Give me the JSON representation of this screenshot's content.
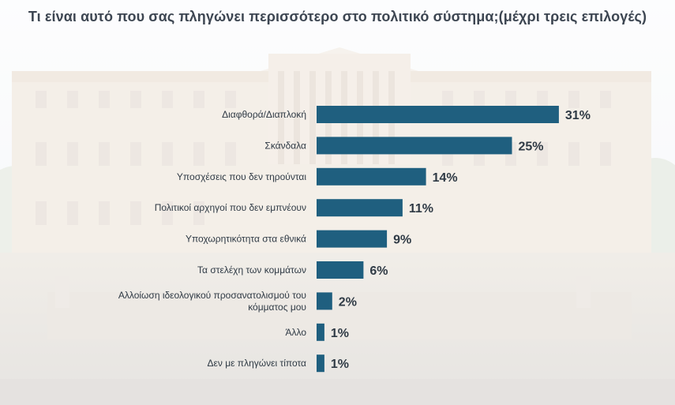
{
  "title": "Τι είναι αυτό που σας πληγώνει περισσότερο στο πολιτικό σύστημα;(μέχρι τρεις επιλογές)",
  "colors": {
    "bar": "#1f5f7f",
    "text": "#2f3a45"
  },
  "chart_data": {
    "type": "bar",
    "orientation": "horizontal",
    "title": "Τι είναι αυτό που σας πληγώνει περισσότερο στο πολιτικό σύστημα;(μέχρι τρεις επιλογές)",
    "categories": [
      "Διαφθορά/Διαπλοκή",
      "Σκάνδαλα",
      "Υποσχέσεις που δεν τηρούνται",
      "Πολιτικοί αρχηγοί που δεν εμπνέουν",
      "Υποχωρητικότητα στα εθνικά",
      "Τα στελέχη των κομμάτων",
      "Αλλοίωση ιδεολογικού προσανατολισμού του κόμματος μου",
      "Άλλο",
      "Δεν με πληγώνει τίποτα"
    ],
    "values": [
      31,
      25,
      14,
      11,
      9,
      6,
      2,
      1,
      1
    ],
    "value_labels": [
      "31%",
      "25%",
      "14%",
      "11%",
      "9%",
      "6%",
      "2%",
      "1%",
      "1%"
    ],
    "xlim": [
      0,
      31
    ],
    "grid": false,
    "legend": "none"
  }
}
